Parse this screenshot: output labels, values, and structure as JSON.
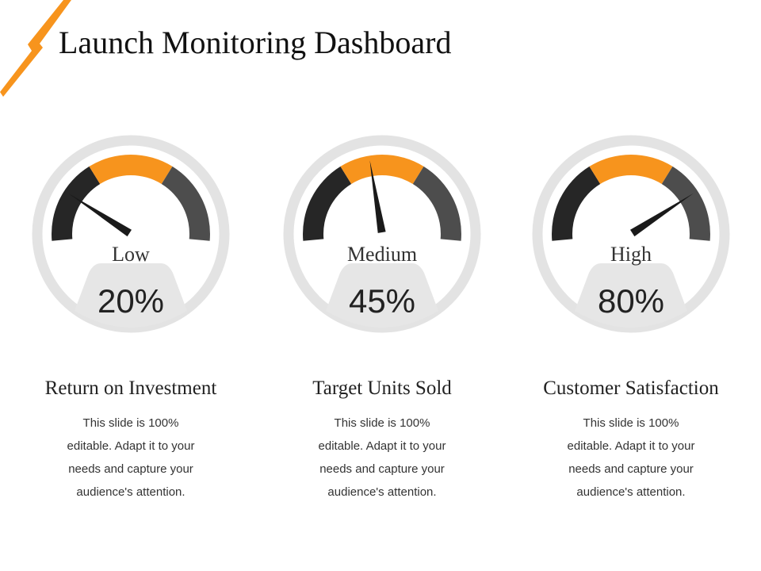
{
  "title": "Launch Monitoring Dashboard",
  "colors": {
    "ring": "#e3e3e3",
    "plate": "#e6e6e6",
    "seg_low": "#262626",
    "seg_mid": "#f7941d",
    "seg_high": "#4d4d4d",
    "needle": "#1a1a1a",
    "accent": "#f7941d"
  },
  "chart_data": {
    "type": "gauge",
    "max": 100,
    "bands": [
      "Low",
      "Medium",
      "High"
    ],
    "gauges": [
      {
        "metric": "Return on Investment",
        "level": "Low",
        "value": 20,
        "value_label": "20%",
        "description": "This slide is 100% editable. Adapt it to your needs and capture your audience's attention."
      },
      {
        "metric": "Target Units Sold",
        "level": "Medium",
        "value": 45,
        "value_label": "45%",
        "description": "This slide is 100% editable. Adapt it to your needs and capture your audience's attention."
      },
      {
        "metric": "Customer Satisfaction",
        "level": "High",
        "value": 80,
        "value_label": "80%",
        "description": "This slide is 100% editable. Adapt it to your needs and capture your audience's attention."
      }
    ]
  }
}
